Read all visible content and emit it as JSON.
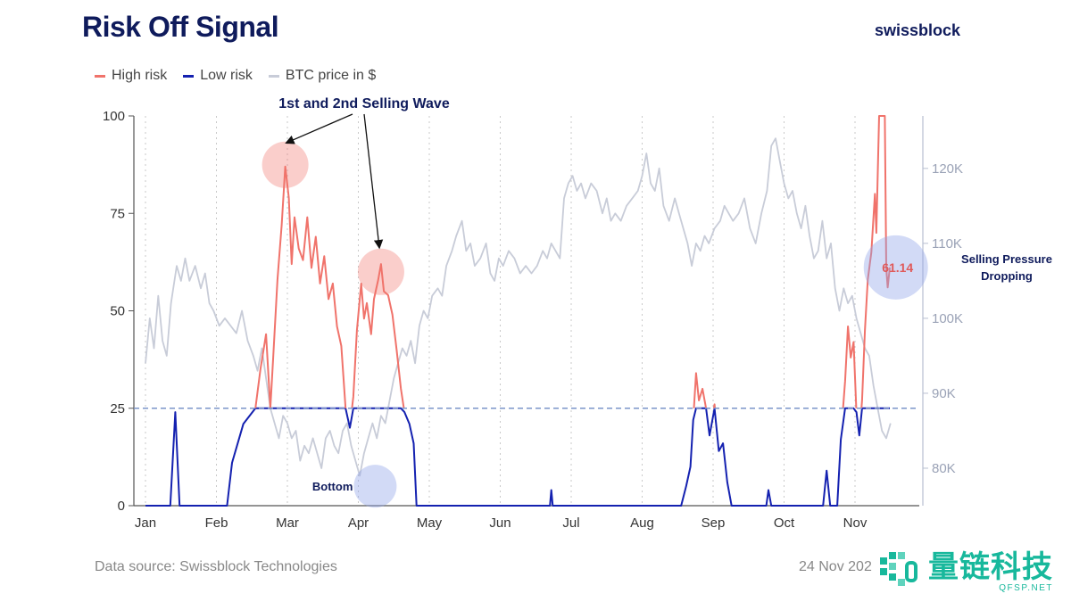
{
  "header": {
    "title": "Risk Off Signal",
    "brand": "swissblock"
  },
  "legend": [
    {
      "label": "High risk",
      "color": "#f0736b"
    },
    {
      "label": "Low risk",
      "color": "#1421b0"
    },
    {
      "label": "BTC price in $",
      "color": "#c8ccd8"
    }
  ],
  "footer": {
    "source": "Data source: Swissblock Technologies",
    "date": "24 Nov 202"
  },
  "watermark": {
    "text": "量链科技",
    "sub": "QFSP.NET"
  },
  "chart_data": {
    "type": "line",
    "title": "Risk Off Signal",
    "x_labels": [
      "Jan",
      "Feb",
      "Mar",
      "Apr",
      "May",
      "Jun",
      "Jul",
      "Aug",
      "Sep",
      "Oct",
      "Nov"
    ],
    "x_range": [
      0,
      10.7
    ],
    "left_axis": {
      "range": [
        0,
        100
      ],
      "ticks": [
        "0",
        "25",
        "50",
        "75",
        "100"
      ]
    },
    "right_axis": {
      "range": [
        75,
        127
      ],
      "ticks": [
        "80K",
        "90K",
        "100K",
        "110K",
        "120K"
      ],
      "tick_values": [
        80,
        90,
        100,
        110,
        120
      ]
    },
    "threshold": 25,
    "risk_series": [
      [
        0,
        0
      ],
      [
        0.35,
        0
      ],
      [
        0.42,
        24
      ],
      [
        0.48,
        0
      ],
      [
        1.15,
        0
      ],
      [
        1.22,
        11
      ],
      [
        1.38,
        21
      ],
      [
        1.55,
        25
      ],
      [
        1.62,
        35
      ],
      [
        1.7,
        44
      ],
      [
        1.76,
        25
      ],
      [
        1.8,
        38
      ],
      [
        1.86,
        58
      ],
      [
        1.92,
        72
      ],
      [
        1.97,
        87
      ],
      [
        2.02,
        79
      ],
      [
        2.06,
        62
      ],
      [
        2.1,
        74
      ],
      [
        2.16,
        66
      ],
      [
        2.22,
        63
      ],
      [
        2.28,
        74
      ],
      [
        2.34,
        61
      ],
      [
        2.4,
        69
      ],
      [
        2.46,
        57
      ],
      [
        2.52,
        64
      ],
      [
        2.58,
        53
      ],
      [
        2.64,
        57
      ],
      [
        2.7,
        46
      ],
      [
        2.76,
        41
      ],
      [
        2.82,
        25
      ],
      [
        2.88,
        20
      ],
      [
        2.93,
        28
      ],
      [
        2.98,
        45
      ],
      [
        3.04,
        57
      ],
      [
        3.08,
        48
      ],
      [
        3.12,
        52
      ],
      [
        3.18,
        44
      ],
      [
        3.22,
        53
      ],
      [
        3.28,
        58
      ],
      [
        3.32,
        62
      ],
      [
        3.36,
        55
      ],
      [
        3.42,
        54
      ],
      [
        3.48,
        49
      ],
      [
        3.54,
        40
      ],
      [
        3.6,
        30
      ],
      [
        3.65,
        24
      ],
      [
        3.72,
        21
      ],
      [
        3.78,
        16
      ],
      [
        3.82,
        0
      ],
      [
        4.5,
        0
      ],
      [
        5.5,
        0
      ],
      [
        5.7,
        0
      ],
      [
        5.72,
        4
      ],
      [
        5.74,
        0
      ],
      [
        7.55,
        0
      ],
      [
        7.62,
        5
      ],
      [
        7.68,
        10
      ],
      [
        7.72,
        22
      ],
      [
        7.76,
        34
      ],
      [
        7.8,
        27
      ],
      [
        7.85,
        30
      ],
      [
        7.9,
        25
      ],
      [
        7.95,
        18
      ],
      [
        8.02,
        26
      ],
      [
        8.08,
        14
      ],
      [
        8.14,
        16
      ],
      [
        8.2,
        6
      ],
      [
        8.26,
        0
      ],
      [
        8.75,
        0
      ],
      [
        8.78,
        4
      ],
      [
        8.82,
        0
      ],
      [
        9.55,
        0
      ],
      [
        9.6,
        9
      ],
      [
        9.65,
        0
      ],
      [
        9.75,
        0
      ],
      [
        9.8,
        17
      ],
      [
        9.86,
        32
      ],
      [
        9.9,
        46
      ],
      [
        9.94,
        38
      ],
      [
        9.98,
        42
      ],
      [
        10.02,
        24
      ],
      [
        10.06,
        18
      ],
      [
        10.1,
        27
      ],
      [
        10.14,
        45
      ],
      [
        10.18,
        58
      ],
      [
        10.23,
        65
      ],
      [
        10.28,
        80
      ],
      [
        10.3,
        70
      ],
      [
        10.34,
        100
      ],
      [
        10.42,
        100
      ],
      [
        10.44,
        61
      ],
      [
        10.46,
        56
      ],
      [
        10.49,
        61.14
      ]
    ],
    "price_series": [
      [
        0,
        94
      ],
      [
        0.06,
        100
      ],
      [
        0.12,
        96
      ],
      [
        0.18,
        103
      ],
      [
        0.24,
        97
      ],
      [
        0.3,
        95
      ],
      [
        0.36,
        102
      ],
      [
        0.44,
        107
      ],
      [
        0.5,
        105
      ],
      [
        0.56,
        108
      ],
      [
        0.62,
        105
      ],
      [
        0.7,
        107
      ],
      [
        0.78,
        104
      ],
      [
        0.84,
        106
      ],
      [
        0.9,
        102
      ],
      [
        0.96,
        101
      ],
      [
        1.04,
        99
      ],
      [
        1.12,
        100
      ],
      [
        1.2,
        99
      ],
      [
        1.28,
        98
      ],
      [
        1.36,
        101
      ],
      [
        1.44,
        97
      ],
      [
        1.52,
        95
      ],
      [
        1.58,
        93
      ],
      [
        1.64,
        96
      ],
      [
        1.7,
        92
      ],
      [
        1.76,
        88
      ],
      [
        1.82,
        86
      ],
      [
        1.88,
        84
      ],
      [
        1.94,
        87
      ],
      [
        2.0,
        86
      ],
      [
        2.06,
        84
      ],
      [
        2.12,
        85
      ],
      [
        2.18,
        81
      ],
      [
        2.24,
        83
      ],
      [
        2.3,
        82
      ],
      [
        2.36,
        84
      ],
      [
        2.42,
        82
      ],
      [
        2.48,
        80
      ],
      [
        2.54,
        84
      ],
      [
        2.6,
        85
      ],
      [
        2.66,
        83
      ],
      [
        2.72,
        82
      ],
      [
        2.78,
        85
      ],
      [
        2.84,
        86
      ],
      [
        2.9,
        83
      ],
      [
        2.96,
        81
      ],
      [
        3.02,
        79
      ],
      [
        3.08,
        82
      ],
      [
        3.14,
        84
      ],
      [
        3.2,
        86
      ],
      [
        3.26,
        84
      ],
      [
        3.32,
        87
      ],
      [
        3.38,
        86
      ],
      [
        3.44,
        89
      ],
      [
        3.5,
        92
      ],
      [
        3.56,
        94
      ],
      [
        3.62,
        96
      ],
      [
        3.68,
        95
      ],
      [
        3.74,
        97
      ],
      [
        3.8,
        94
      ],
      [
        3.86,
        99
      ],
      [
        3.92,
        101
      ],
      [
        3.98,
        100
      ],
      [
        4.04,
        103
      ],
      [
        4.12,
        104
      ],
      [
        4.18,
        103
      ],
      [
        4.24,
        107
      ],
      [
        4.32,
        109
      ],
      [
        4.38,
        111
      ],
      [
        4.46,
        113
      ],
      [
        4.52,
        109
      ],
      [
        4.58,
        110
      ],
      [
        4.64,
        107
      ],
      [
        4.72,
        108
      ],
      [
        4.8,
        110
      ],
      [
        4.86,
        106
      ],
      [
        4.92,
        105
      ],
      [
        4.98,
        108
      ],
      [
        5.04,
        107
      ],
      [
        5.12,
        109
      ],
      [
        5.2,
        108
      ],
      [
        5.28,
        106
      ],
      [
        5.36,
        107
      ],
      [
        5.44,
        106
      ],
      [
        5.52,
        107
      ],
      [
        5.6,
        109
      ],
      [
        5.66,
        108
      ],
      [
        5.72,
        110
      ],
      [
        5.78,
        109
      ],
      [
        5.84,
        108
      ],
      [
        5.9,
        116
      ],
      [
        5.96,
        118
      ],
      [
        6.02,
        119
      ],
      [
        6.08,
        117
      ],
      [
        6.14,
        118
      ],
      [
        6.2,
        116
      ],
      [
        6.28,
        118
      ],
      [
        6.36,
        117
      ],
      [
        6.44,
        114
      ],
      [
        6.5,
        116
      ],
      [
        6.56,
        113
      ],
      [
        6.62,
        114
      ],
      [
        6.7,
        113
      ],
      [
        6.78,
        115
      ],
      [
        6.86,
        116
      ],
      [
        6.94,
        117
      ],
      [
        7.0,
        119
      ],
      [
        7.06,
        122
      ],
      [
        7.12,
        118
      ],
      [
        7.18,
        117
      ],
      [
        7.24,
        120
      ],
      [
        7.3,
        115
      ],
      [
        7.38,
        113
      ],
      [
        7.46,
        116
      ],
      [
        7.52,
        114
      ],
      [
        7.58,
        112
      ],
      [
        7.64,
        110
      ],
      [
        7.7,
        107
      ],
      [
        7.76,
        110
      ],
      [
        7.82,
        109
      ],
      [
        7.88,
        111
      ],
      [
        7.94,
        110
      ],
      [
        8.02,
        112
      ],
      [
        8.1,
        113
      ],
      [
        8.16,
        115
      ],
      [
        8.22,
        114
      ],
      [
        8.28,
        113
      ],
      [
        8.36,
        114
      ],
      [
        8.44,
        116
      ],
      [
        8.52,
        112
      ],
      [
        8.6,
        110
      ],
      [
        8.68,
        114
      ],
      [
        8.76,
        117
      ],
      [
        8.82,
        123
      ],
      [
        8.88,
        124
      ],
      [
        8.94,
        121
      ],
      [
        9.0,
        118
      ],
      [
        9.06,
        116
      ],
      [
        9.12,
        117
      ],
      [
        9.18,
        114
      ],
      [
        9.24,
        112
      ],
      [
        9.3,
        115
      ],
      [
        9.36,
        111
      ],
      [
        9.42,
        108
      ],
      [
        9.48,
        109
      ],
      [
        9.54,
        113
      ],
      [
        9.6,
        108
      ],
      [
        9.66,
        110
      ],
      [
        9.72,
        104
      ],
      [
        9.78,
        101
      ],
      [
        9.84,
        104
      ],
      [
        9.9,
        102
      ],
      [
        9.96,
        103
      ],
      [
        10.02,
        100
      ],
      [
        10.08,
        98
      ],
      [
        10.14,
        96
      ],
      [
        10.2,
        95
      ],
      [
        10.26,
        91
      ],
      [
        10.32,
        88
      ],
      [
        10.38,
        85
      ],
      [
        10.44,
        84
      ],
      [
        10.5,
        86
      ]
    ],
    "annotations": {
      "waves_label": "1st and 2nd Selling Wave",
      "bottom_label": "Bottom",
      "value_label": "61.14",
      "pressure_line1": "Selling Pressure",
      "pressure_line2": "Dropping",
      "peak1": [
        1.97,
        87
      ],
      "peak2": [
        3.32,
        60
      ],
      "bottom_point": [
        3.2,
        5
      ],
      "value_point": [
        10.55,
        61.14
      ]
    },
    "colors": {
      "high": "#f0736b",
      "low": "#1421b0",
      "price": "#c8ccd8",
      "threshold": "#7b95c9",
      "axis": "#555555",
      "right_tick": "#9aa2b6",
      "annotation": "#0f1b5c"
    }
  }
}
